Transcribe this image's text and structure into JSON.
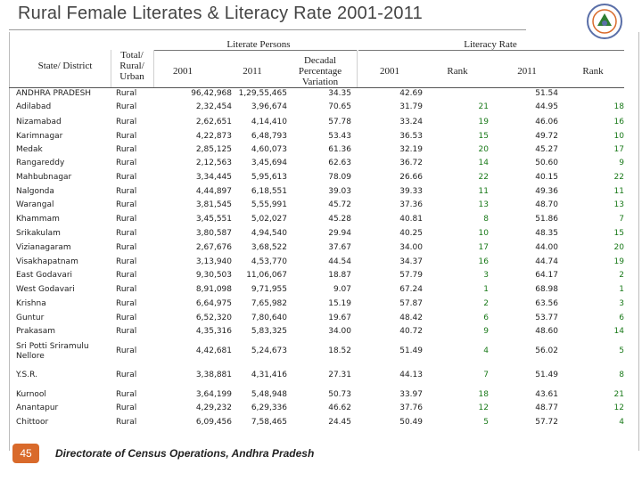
{
  "title": "Rural Female Literates & Literacy Rate 2001-2011",
  "headers": {
    "state_district": "State/ District",
    "area": "Total/ Rural/ Urban",
    "literate_persons": "Literate Persons",
    "literacy_rate": "Literacy Rate",
    "col_2001": "2001",
    "col_2011": "2011",
    "decadal": "Decadal Percentage Variation",
    "rate_2001": "2001",
    "rank_a": "Rank",
    "rate_2011": "2011",
    "rank_b": "Rank"
  },
  "rows": [
    {
      "name": "ANDHRA PRADESH",
      "area": "Rural",
      "p2001": "96,42,968",
      "p2011": "1,29,55,465",
      "dec": "34.35",
      "r2001": "42.69",
      "rank1": "",
      "r2011": "51.54",
      "rank2": ""
    },
    {
      "name": "Adilabad",
      "area": "Rural",
      "p2001": "2,32,454",
      "p2011": "3,96,674",
      "dec": "70.65",
      "r2001": "31.79",
      "rank1": "21",
      "r2011": "44.95",
      "rank2": "18"
    },
    {
      "name": "Nizamabad",
      "area": "Rural",
      "p2001": "2,62,651",
      "p2011": "4,14,410",
      "dec": "57.78",
      "r2001": "33.24",
      "rank1": "19",
      "r2011": "46.06",
      "rank2": "16"
    },
    {
      "name": "Karimnagar",
      "area": "Rural",
      "p2001": "4,22,873",
      "p2011": "6,48,793",
      "dec": "53.43",
      "r2001": "36.53",
      "rank1": "15",
      "r2011": "49.72",
      "rank2": "10"
    },
    {
      "name": "Medak",
      "area": "Rural",
      "p2001": "2,85,125",
      "p2011": "4,60,073",
      "dec": "61.36",
      "r2001": "32.19",
      "rank1": "20",
      "r2011": "45.27",
      "rank2": "17"
    },
    {
      "name": "Rangareddy",
      "area": "Rural",
      "p2001": "2,12,563",
      "p2011": "3,45,694",
      "dec": "62.63",
      "r2001": "36.72",
      "rank1": "14",
      "r2011": "50.60",
      "rank2": "9"
    },
    {
      "name": "Mahbubnagar",
      "area": "Rural",
      "p2001": "3,34,445",
      "p2011": "5,95,613",
      "dec": "78.09",
      "r2001": "26.66",
      "rank1": "22",
      "r2011": "40.15",
      "rank2": "22"
    },
    {
      "name": "Nalgonda",
      "area": "Rural",
      "p2001": "4,44,897",
      "p2011": "6,18,551",
      "dec": "39.03",
      "r2001": "39.33",
      "rank1": "11",
      "r2011": "49.36",
      "rank2": "11"
    },
    {
      "name": "Warangal",
      "area": "Rural",
      "p2001": "3,81,545",
      "p2011": "5,55,991",
      "dec": "45.72",
      "r2001": "37.36",
      "rank1": "13",
      "r2011": "48.70",
      "rank2": "13"
    },
    {
      "name": "Khammam",
      "area": "Rural",
      "p2001": "3,45,551",
      "p2011": "5,02,027",
      "dec": "45.28",
      "r2001": "40.81",
      "rank1": "8",
      "r2011": "51.86",
      "rank2": "7"
    },
    {
      "name": "Srikakulam",
      "area": "Rural",
      "p2001": "3,80,587",
      "p2011": "4,94,540",
      "dec": "29.94",
      "r2001": "40.25",
      "rank1": "10",
      "r2011": "48.35",
      "rank2": "15"
    },
    {
      "name": "Vizianagaram",
      "area": "Rural",
      "p2001": "2,67,676",
      "p2011": "3,68,522",
      "dec": "37.67",
      "r2001": "34.00",
      "rank1": "17",
      "r2011": "44.00",
      "rank2": "20"
    },
    {
      "name": "Visakhapatnam",
      "area": "Rural",
      "p2001": "3,13,940",
      "p2011": "4,53,770",
      "dec": "44.54",
      "r2001": "34.37",
      "rank1": "16",
      "r2011": "44.74",
      "rank2": "19"
    },
    {
      "name": "East Godavari",
      "area": "Rural",
      "p2001": "9,30,503",
      "p2011": "11,06,067",
      "dec": "18.87",
      "r2001": "57.79",
      "rank1": "3",
      "r2011": "64.17",
      "rank2": "2"
    },
    {
      "name": "West Godavari",
      "area": "Rural",
      "p2001": "8,91,098",
      "p2011": "9,71,955",
      "dec": "9.07",
      "r2001": "67.24",
      "rank1": "1",
      "r2011": "68.98",
      "rank2": "1"
    },
    {
      "name": "Krishna",
      "area": "Rural",
      "p2001": "6,64,975",
      "p2011": "7,65,982",
      "dec": "15.19",
      "r2001": "57.87",
      "rank1": "2",
      "r2011": "63.56",
      "rank2": "3"
    },
    {
      "name": "Guntur",
      "area": "Rural",
      "p2001": "6,52,320",
      "p2011": "7,80,640",
      "dec": "19.67",
      "r2001": "48.42",
      "rank1": "6",
      "r2011": "53.77",
      "rank2": "6"
    },
    {
      "name": "Prakasam",
      "area": "Rural",
      "p2001": "4,35,316",
      "p2011": "5,83,325",
      "dec": "34.00",
      "r2001": "40.72",
      "rank1": "9",
      "r2011": "48.60",
      "rank2": "14"
    },
    {
      "name": "Sri Potti Sriramulu Nellore",
      "area": "Rural",
      "p2001": "4,42,681",
      "p2011": "5,24,673",
      "dec": "18.52",
      "r2001": "51.49",
      "rank1": "4",
      "r2011": "56.02",
      "rank2": "5"
    },
    {
      "name": "Y.S.R.",
      "area": "Rural",
      "p2001": "3,38,881",
      "p2011": "4,31,416",
      "dec": "27.31",
      "r2001": "44.13",
      "rank1": "7",
      "r2011": "51.49",
      "rank2": "8"
    },
    {
      "name": "Kurnool",
      "area": "Rural",
      "p2001": "3,64,199",
      "p2011": "5,48,948",
      "dec": "50.73",
      "r2001": "33.97",
      "rank1": "18",
      "r2011": "43.61",
      "rank2": "21"
    },
    {
      "name": "Anantapur",
      "area": "Rural",
      "p2001": "4,29,232",
      "p2011": "6,29,336",
      "dec": "46.62",
      "r2001": "37.76",
      "rank1": "12",
      "r2011": "48.77",
      "rank2": "12"
    },
    {
      "name": "Chittoor",
      "area": "Rural",
      "p2001": "6,09,456",
      "p2011": "7,58,465",
      "dec": "24.45",
      "r2001": "50.49",
      "rank1": "5",
      "r2011": "57.72",
      "rank2": "4"
    }
  ],
  "footer": "Directorate of Census Operations, Andhra Pradesh",
  "page_number": "45",
  "emblem_icon": "census-emblem-icon",
  "colors": {
    "rank": "#1a7a1a",
    "badge": "#d96a2b",
    "title": "#444444"
  }
}
